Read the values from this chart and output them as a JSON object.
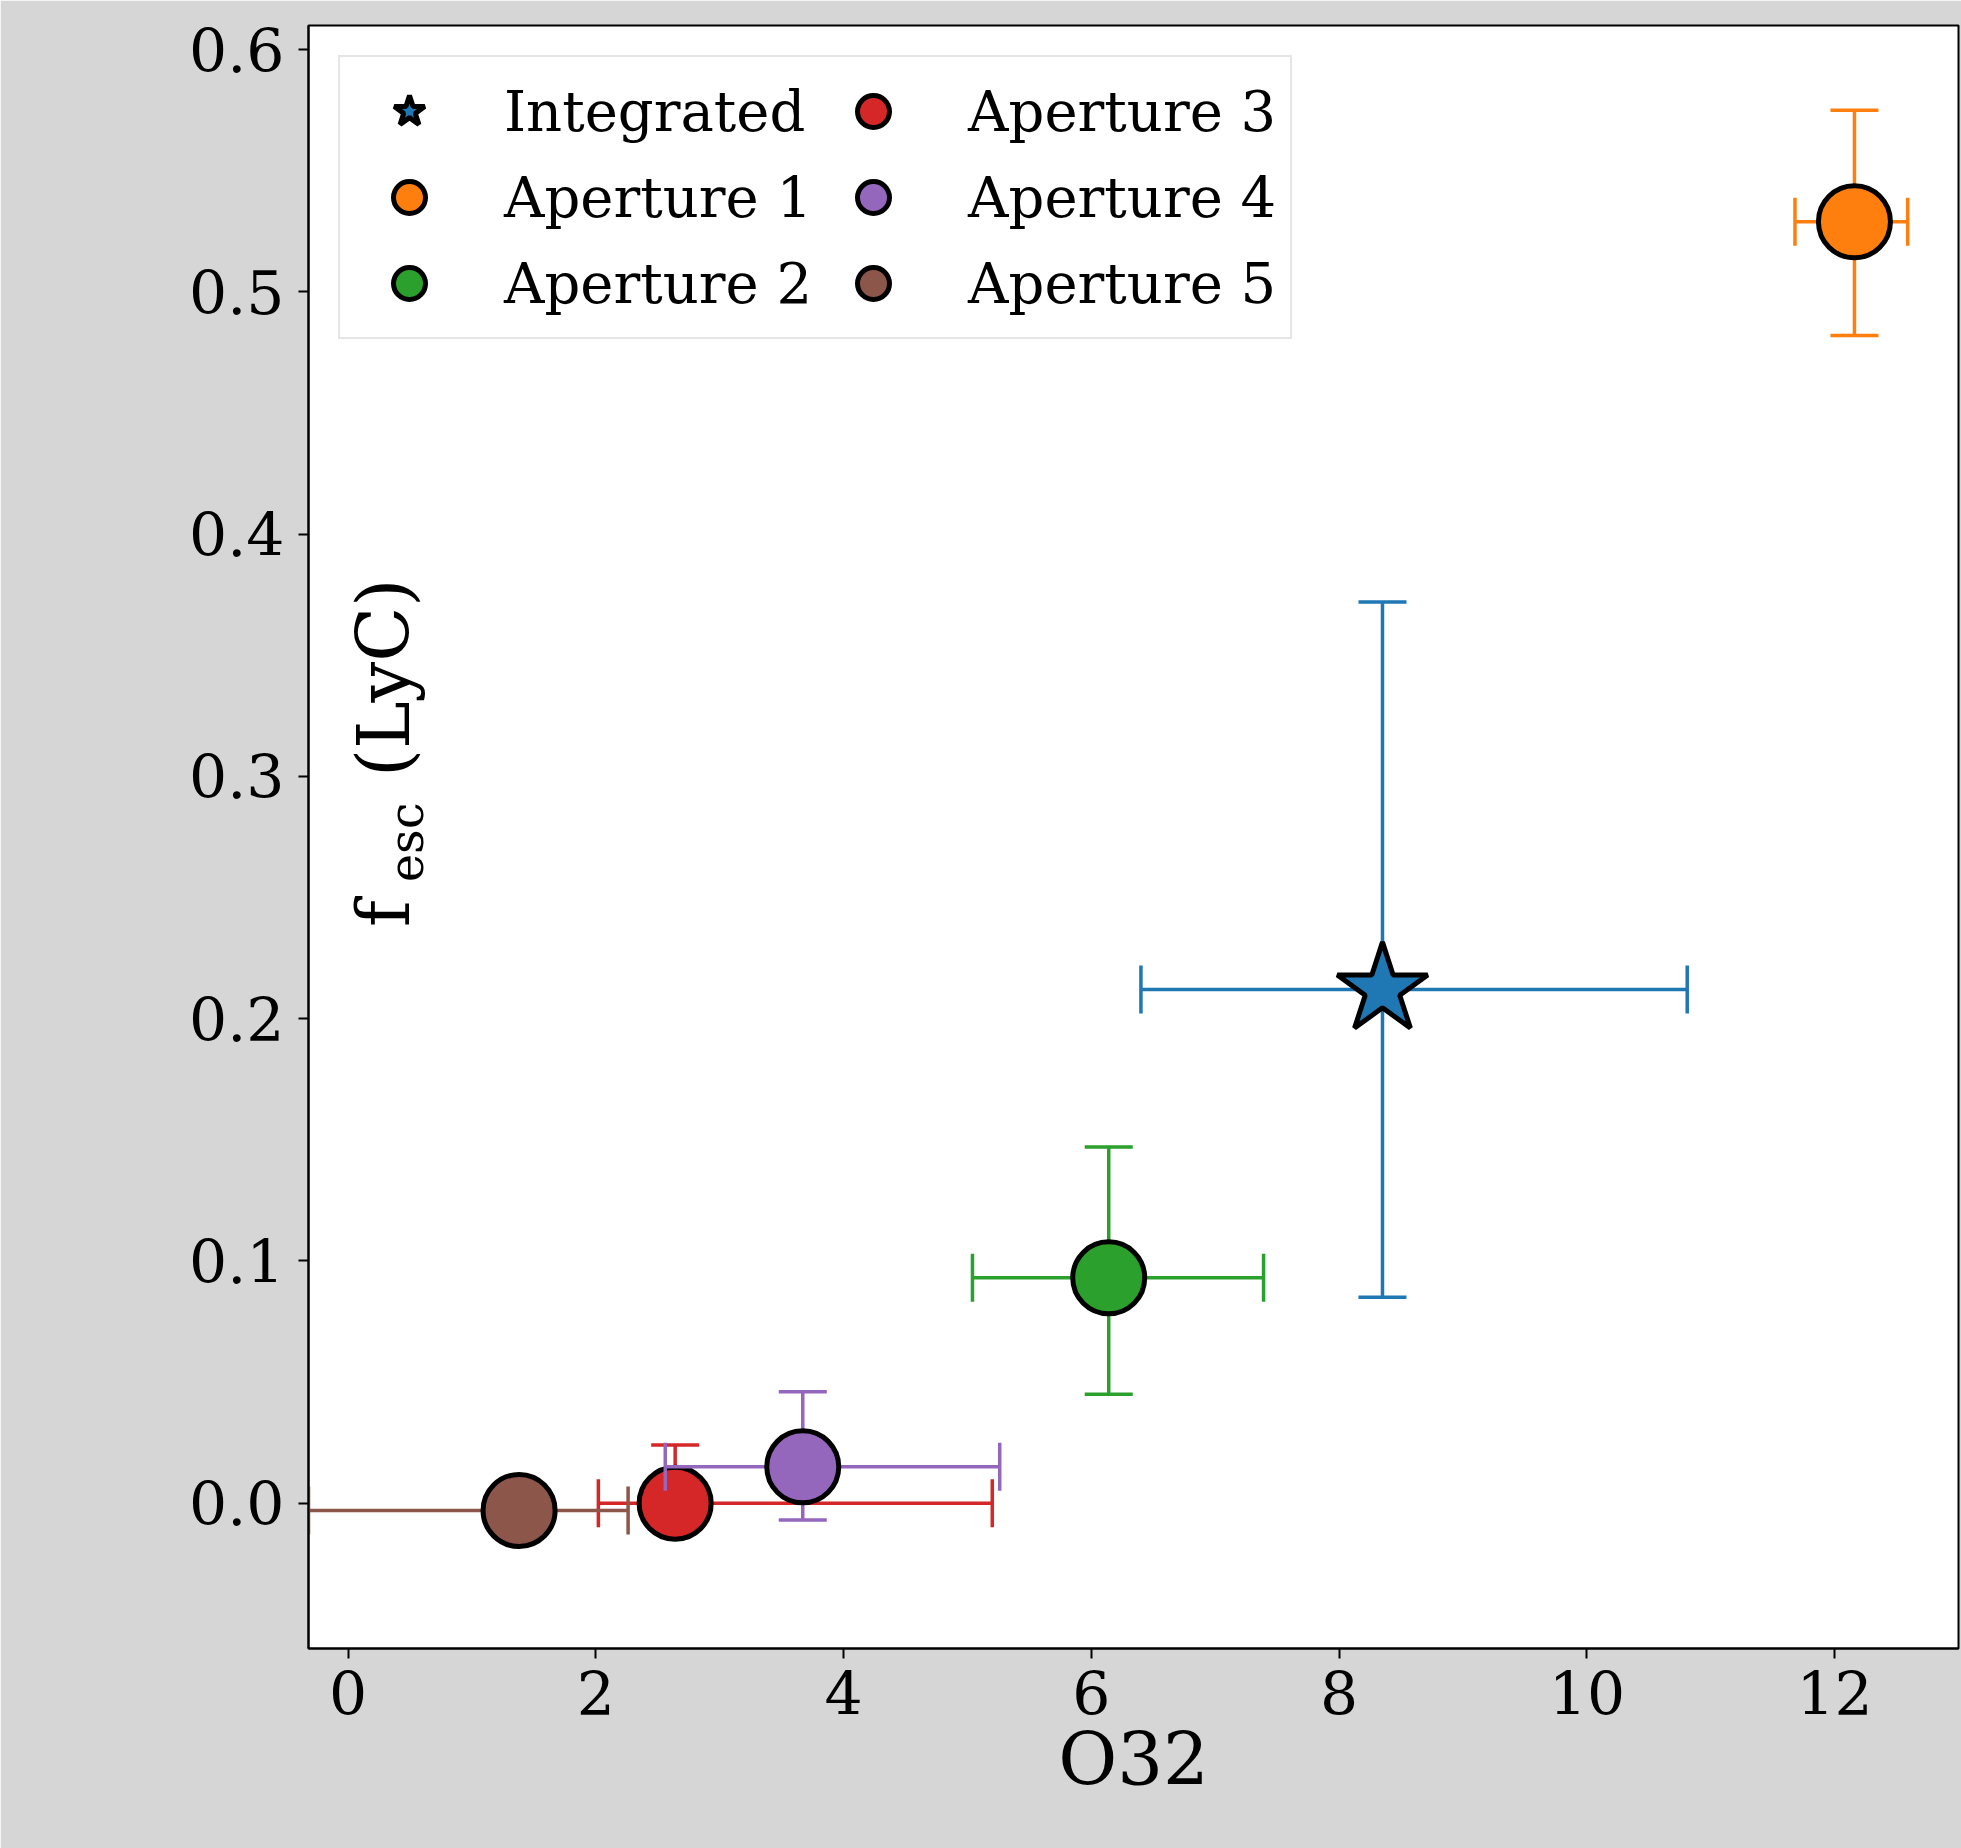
{
  "chart_data": {
    "type": "scatter",
    "xlabel": "O32",
    "ylabel": "f$_{esc}$ (LyC)",
    "xlim": [
      -0.32,
      13.0
    ],
    "ylim": [
      -0.06,
      0.61
    ],
    "xticks": [
      0,
      2,
      4,
      6,
      8,
      10,
      12
    ],
    "yticks": [
      {
        "value": 0,
        "label": "0.0"
      },
      0.1,
      0.2,
      0.3,
      0.4,
      0.5,
      0.6
    ],
    "grid": false,
    "legend": "top left",
    "series": [
      {
        "name": "Integrated",
        "color": "#1f77b4",
        "marker": "star",
        "x": [
          8.35
        ],
        "values": [
          0.212
        ],
        "xerrors": [
          [
            6.4,
            10.81
          ]
        ],
        "errors": [
          [
            0.085,
            0.372
          ]
        ]
      },
      {
        "name": "Aperture 1",
        "color": "#ff7f0e",
        "marker": "circle",
        "x": [
          12.16
        ],
        "values": [
          0.529
        ],
        "xerrors": [
          [
            11.68,
            12.59
          ]
        ],
        "errors": [
          [
            0.482,
            0.575
          ]
        ]
      },
      {
        "name": "Aperture 2",
        "color": "#2ca02c",
        "marker": "circle",
        "x": [
          6.14
        ],
        "values": [
          0.093
        ],
        "xerrors": [
          [
            5.04,
            7.39
          ]
        ],
        "errors": [
          [
            0.045,
            0.147
          ]
        ]
      },
      {
        "name": "Aperture 3",
        "color": "#d62728",
        "marker": "circle",
        "x": [
          2.64
        ],
        "values": [
          0.0
        ],
        "xerrors": [
          [
            2.02,
            5.2
          ]
        ],
        "errors": [
          [
            0.0,
            0.024
          ]
        ]
      },
      {
        "name": "Aperture 4",
        "color": "#9467bd",
        "marker": "circle",
        "x": [
          3.67
        ],
        "values": [
          0.015
        ],
        "xerrors": [
          [
            2.56,
            5.26
          ]
        ],
        "errors": [
          [
            -0.007,
            0.046
          ]
        ]
      },
      {
        "name": "Aperture 5",
        "color": "#8c564b",
        "marker": "circle",
        "x": [
          1.38
        ],
        "values": [
          -0.003
        ],
        "xerrors": [
          [
            -0.32,
            2.26
          ]
        ],
        "errors": [
          null
        ]
      }
    ]
  }
}
